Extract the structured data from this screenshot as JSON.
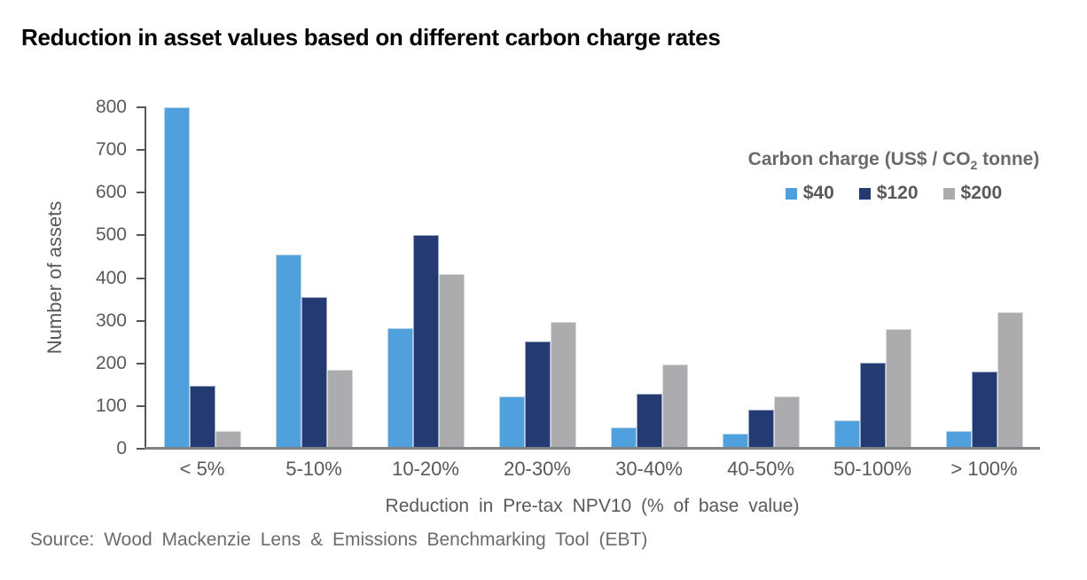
{
  "legend": {
    "title_prefix": "Carbon charge (US$ / CO",
    "title_sub": "2",
    "title_suffix": " tonne)"
  },
  "source": "Source: Wood Mackenzie Lens & Emissions Benchmarking Tool (EBT)",
  "chart_data": {
    "type": "bar",
    "title": "Reduction in asset values based on different carbon charge rates",
    "categories": [
      "< 5%",
      "5-10%",
      "10-20%",
      "20-30%",
      "30-40%",
      "40-50%",
      "50-100%",
      "> 100%"
    ],
    "series": [
      {
        "name": "$40",
        "color": "#4FA0DC",
        "values": [
          800,
          455,
          283,
          122,
          50,
          36,
          67,
          42
        ]
      },
      {
        "name": "$120",
        "color": "#233A72",
        "values": [
          148,
          355,
          500,
          252,
          129,
          92,
          202,
          180
        ]
      },
      {
        "name": "$200",
        "color": "#ACACAE",
        "values": [
          42,
          185,
          410,
          297,
          198,
          122,
          281,
          320
        ]
      }
    ],
    "xlabel": "Reduction in Pre-tax NPV10 (% of base value)",
    "ylabel": "Number of assets",
    "ylim": [
      0,
      800
    ],
    "ytick_step": 100,
    "legend_title": "Carbon charge (US$ / CO2 tonne)",
    "legend_position": "top-right",
    "grid": false,
    "colors": {
      "axis_text": "#595959",
      "axis_line": "#55565A",
      "baseline": "#7F8284",
      "title_text": "#000000"
    }
  }
}
